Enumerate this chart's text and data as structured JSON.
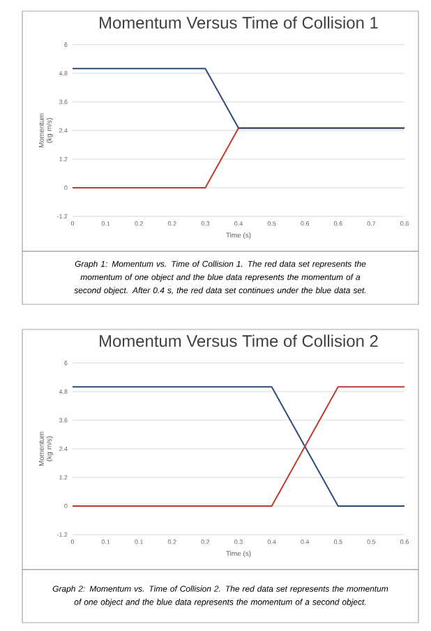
{
  "chart_data": [
    {
      "type": "line",
      "title": "Momentum Versus Time of Collision 1",
      "xlabel": "Time (s)",
      "ylabel": "Momentum (kg m/s)",
      "series": [
        {
          "color": "#c0392b",
          "x": [
            0,
            0.32,
            0.4,
            0.8
          ],
          "values": [
            0,
            0,
            2.5,
            2.5
          ]
        },
        {
          "color": "#2e4a7a",
          "x": [
            0,
            0.32,
            0.4,
            0.8
          ],
          "values": [
            5,
            5,
            2.5,
            2.5
          ]
        }
      ],
      "xlim": [
        0,
        0.8
      ],
      "xticks": [
        0,
        {
          "value": 0.08,
          "label": "0.1"
        },
        {
          "value": 0.16,
          "label": "0.2"
        },
        {
          "value": 0.24,
          "label": "0.2"
        },
        {
          "value": 0.32,
          "label": "0.3"
        },
        0.4,
        {
          "value": 0.48,
          "label": "0.5"
        },
        {
          "value": 0.56,
          "label": "0.6"
        },
        {
          "value": 0.64,
          "label": "0.6"
        },
        {
          "value": 0.72,
          "label": "0.7"
        },
        0.8
      ],
      "ylim": [
        -1.2,
        6
      ],
      "yticks": [
        -1.2,
        0,
        1.2,
        2.4,
        3.6,
        4.8,
        6
      ],
      "grid": "y",
      "annotations": [
        "Graph 1: Momentum vs. Time of Collision 1. The red data set represents the momentum of one object and the blue data represents the momentum of a second object. After 0.4 s, the red data set continues under the blue data set."
      ]
    },
    {
      "type": "line",
      "title": "Momentum Versus Time of Collision 2",
      "xlabel": "Time (s)",
      "ylabel": "Momentum (kg m/s)",
      "series": [
        {
          "color": "#2e4a7a",
          "x": [
            0,
            0.36,
            0.48,
            0.6
          ],
          "values": [
            5,
            5,
            0,
            0
          ]
        },
        {
          "color": "#c0392b",
          "x": [
            0,
            0.36,
            0.48,
            0.6
          ],
          "values": [
            0,
            0,
            5,
            5
          ]
        }
      ],
      "xlim": [
        0,
        0.6
      ],
      "xticks": [
        0,
        {
          "value": 0.06,
          "label": "0.1"
        },
        {
          "value": 0.12,
          "label": "0.1"
        },
        {
          "value": 0.18,
          "label": "0.2"
        },
        {
          "value": 0.24,
          "label": "0.2"
        },
        0.3,
        {
          "value": 0.36,
          "label": "0.4"
        },
        {
          "value": 0.42,
          "label": "0.4"
        },
        {
          "value": 0.48,
          "label": "0.5"
        },
        {
          "value": 0.54,
          "label": "0.5"
        },
        0.6
      ],
      "ylim": [
        -1.2,
        6
      ],
      "yticks": [
        -1.2,
        0,
        1.2,
        2.4,
        3.6,
        4.8,
        6
      ],
      "grid": "y",
      "annotations": [
        "Graph 2: Momentum vs. Time of Collision 2. The red data set represents the momentum of one object and the blue data represents the momentum of a second object."
      ]
    }
  ]
}
